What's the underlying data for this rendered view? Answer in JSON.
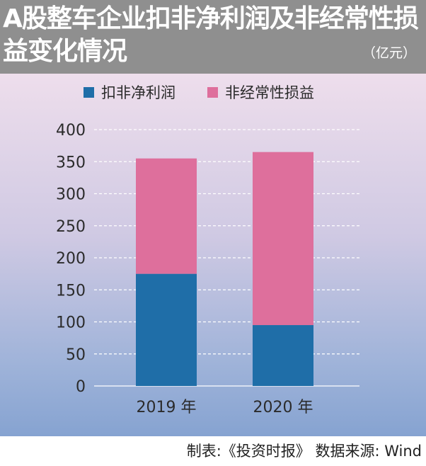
{
  "header": {
    "title": "A股整车企业扣非净利润及非经常性损益变化情况",
    "unit": "（亿元）"
  },
  "footer": {
    "source": "制表:《投资时报》 数据来源: Wind"
  },
  "colors": {
    "header_bg": "#8f8f8f",
    "series_1": "#1f6ea8",
    "series_2": "#de6f9c",
    "grid": "#ffffff",
    "text": "#2b2b2b"
  },
  "chart_data": {
    "type": "bar",
    "stacked": true,
    "categories": [
      "2019 年",
      "2020 年"
    ],
    "series": [
      {
        "name": "扣非净利润",
        "values": [
          175,
          95
        ]
      },
      {
        "name": "非经常性损益",
        "values": [
          180,
          270
        ]
      }
    ],
    "ylim": [
      0,
      400
    ],
    "yticks": [
      0,
      50,
      100,
      150,
      200,
      250,
      300,
      350,
      400
    ],
    "grid": true,
    "legend_position": "top"
  }
}
